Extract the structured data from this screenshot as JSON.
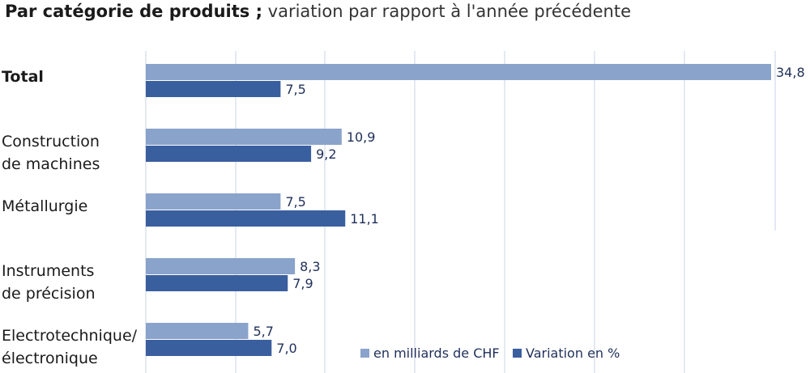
{
  "title": {
    "bold": "Par catégorie de produits ;",
    "rest": " variation par rapport à l'année précédente"
  },
  "colors": {
    "light": "#8aa3cb",
    "dark": "#3a5f9f",
    "grid": "#c9d3e3"
  },
  "chart_data": {
    "type": "bar",
    "orientation": "horizontal",
    "title": "Par catégorie de produits ; variation par rapport à l'année précédente",
    "categories": [
      [
        "Total"
      ],
      [
        "Construction",
        "de machines"
      ],
      [
        "Métallurgie"
      ],
      [
        "Instruments",
        "de précision"
      ],
      [
        "Electrotechnique/",
        "électronique"
      ]
    ],
    "bold_categories": [
      0
    ],
    "series": [
      {
        "name": "en milliards de CHF",
        "values": [
          34.8,
          10.9,
          7.5,
          8.3,
          5.7
        ],
        "labels": [
          "34,8",
          "10,9",
          "7,5",
          "8,3",
          "5,7"
        ],
        "color": "#8aa3cb"
      },
      {
        "name": "Variation en %",
        "values": [
          7.5,
          9.2,
          11.1,
          7.9,
          7.0
        ],
        "labels": [
          "7,5",
          "9,2",
          "11,1",
          "7,9",
          "7,0"
        ],
        "color": "#3a5f9f"
      }
    ],
    "xlim": [
      0,
      35
    ],
    "grid": true,
    "legend": "bottom-right"
  }
}
